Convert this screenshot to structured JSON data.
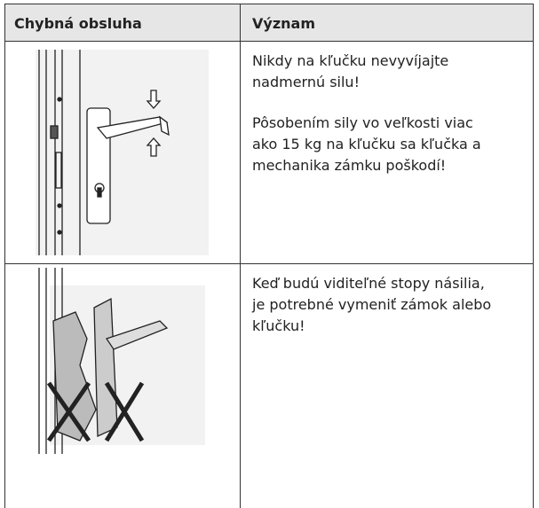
{
  "header": {
    "columns": [
      "Chybná obsluha",
      "Význam"
    ]
  },
  "rows": [
    {
      "text": [
        "Nikdy na kľučku nevyvíjajte nadmernú silu!",
        "Pôsobením sily vo veľkosti viac ako 15 kg na kľučku sa kľučka a mechanika zámku poškodí!"
      ]
    },
    {
      "text": [
        "Keď budú viditeľné stopy násilia, je potrebné vymeniť zámok alebo kľučku!"
      ]
    }
  ]
}
